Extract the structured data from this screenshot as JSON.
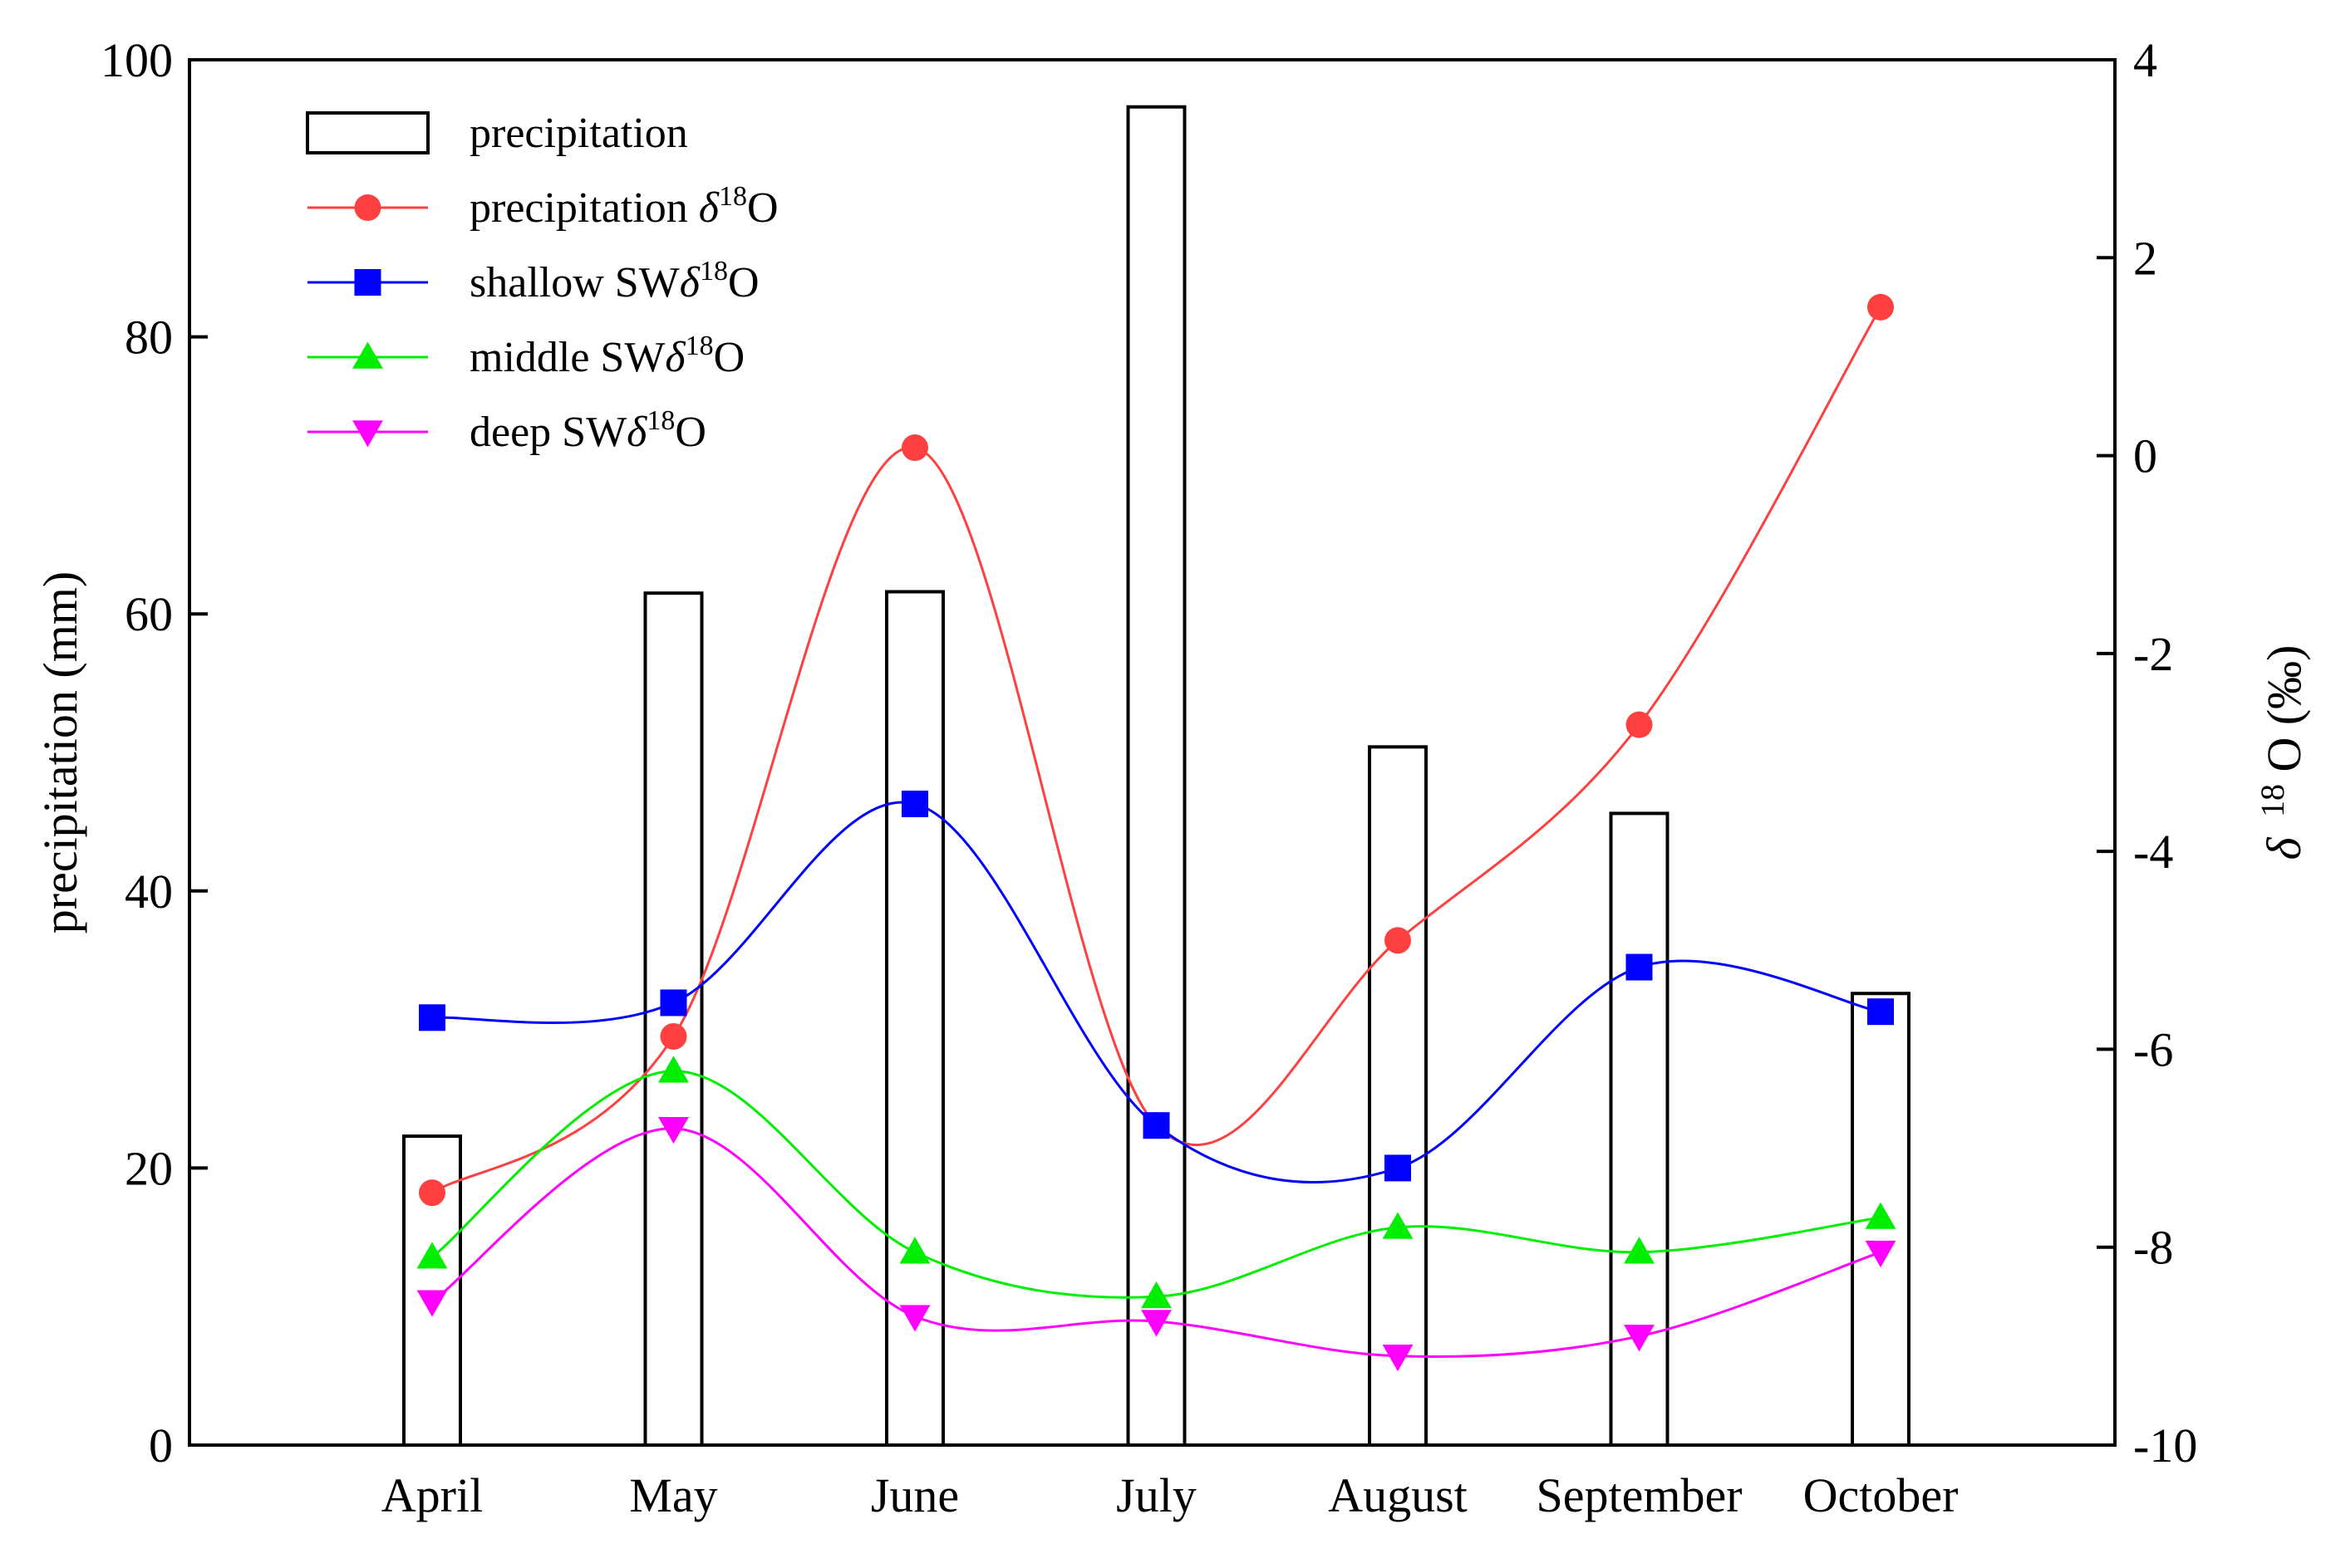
{
  "chart_data": {
    "type": "bar+line",
    "categories": [
      "April",
      "May",
      "June",
      "July",
      "August",
      "September",
      "October"
    ],
    "bars": {
      "name": "precipitation",
      "axis": "left",
      "values": [
        22.3,
        61.5,
        61.6,
        96.6,
        50.4,
        45.6,
        32.6
      ]
    },
    "series": [
      {
        "name": "precipitation δ18O",
        "legend_label": "precipitation δ",
        "axis": "right",
        "marker": "circle",
        "color": "#ff4040",
        "values": [
          -7.45,
          -5.87,
          0.08,
          -6.77,
          -4.9,
          -2.72,
          1.5
        ]
      },
      {
        "name": "shallow SWδ18O",
        "legend_label": "shallow SWδ",
        "axis": "right",
        "marker": "square",
        "color": "#0000ff",
        "values": [
          -5.68,
          -5.53,
          -3.52,
          -6.77,
          -7.2,
          -5.17,
          -5.62
        ]
      },
      {
        "name": "middle SWδ18O",
        "legend_label": "middle SWδ",
        "axis": "right",
        "marker": "triangle-up",
        "color": "#00ee00",
        "values": [
          -8.1,
          -6.22,
          -8.05,
          -8.5,
          -7.8,
          -8.05,
          -7.7
        ]
      },
      {
        "name": "deep SWδ18O",
        "legend_label": "deep SWδ",
        "axis": "right",
        "marker": "triangle-down",
        "color": "#ff00ff",
        "values": [
          -8.55,
          -6.8,
          -8.7,
          -8.75,
          -9.1,
          -8.9,
          -8.05
        ]
      }
    ],
    "legend_sup": "18",
    "legend_suffix": "O",
    "ylabel_left": "precipitation (mm)",
    "ylabel_right_delta": "δ",
    "ylabel_right_sup": "18",
    "ylabel_right_rest": "O (‰)",
    "ylim_left": [
      0,
      100
    ],
    "yticks_left": [
      0,
      20,
      40,
      60,
      80,
      100
    ],
    "ylim_right": [
      -10,
      4
    ],
    "yticks_right": [
      -10,
      -8,
      -6,
      -4,
      -2,
      0,
      2,
      4
    ],
    "legend_position": "top-left",
    "grid": false
  }
}
